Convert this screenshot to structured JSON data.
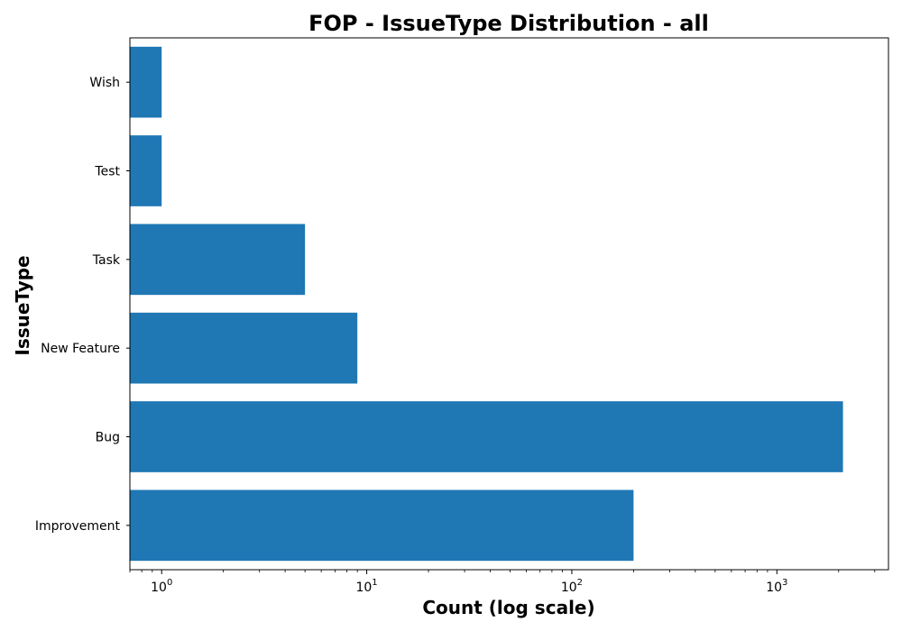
{
  "chart_data": {
    "type": "bar",
    "orientation": "horizontal",
    "title": "FOP - IssueType Distribution - all",
    "xlabel": "Count (log scale)",
    "ylabel": "IssueType",
    "x_scale": "log",
    "xlim": [
      0.7,
      3500
    ],
    "x_ticks": [
      {
        "base": "10",
        "exp": "0",
        "value": 1
      },
      {
        "base": "10",
        "exp": "1",
        "value": 10
      },
      {
        "base": "10",
        "exp": "2",
        "value": 100
      },
      {
        "base": "10",
        "exp": "3",
        "value": 1000
      }
    ],
    "categories": [
      "Improvement",
      "Bug",
      "New Feature",
      "Task",
      "Test",
      "Wish"
    ],
    "values": [
      200,
      2100,
      9,
      5,
      1,
      1
    ],
    "bar_color": "#1f77b4",
    "grid": false,
    "legend": "none"
  }
}
